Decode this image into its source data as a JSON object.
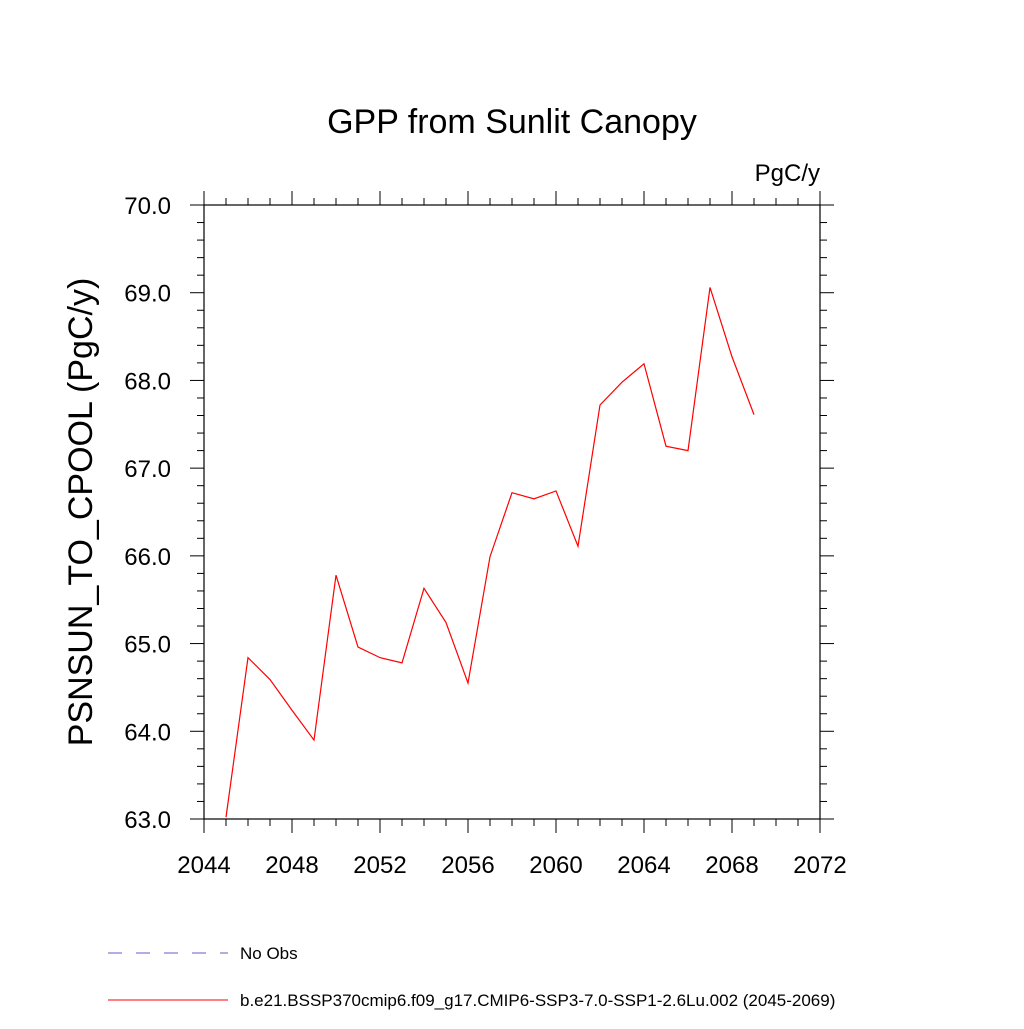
{
  "chart_data": {
    "type": "line",
    "title": "GPP from Sunlit Canopy",
    "units_label": "PgC/y",
    "xlabel": "",
    "ylabel": "PSNSUN_TO_CPOOL  (PgC/y)",
    "xlim": [
      2044,
      2072
    ],
    "ylim": [
      63.0,
      70.0
    ],
    "x_ticks": [
      2044,
      2048,
      2052,
      2056,
      2060,
      2064,
      2068,
      2072
    ],
    "x_tick_labels": [
      "2044",
      "2048",
      "2052",
      "2056",
      "2060",
      "2064",
      "2068",
      "2072"
    ],
    "y_ticks": [
      63.0,
      64.0,
      65.0,
      66.0,
      67.0,
      68.0,
      69.0,
      70.0
    ],
    "y_tick_labels": [
      "63.0",
      "64.0",
      "65.0",
      "66.0",
      "67.0",
      "68.0",
      "69.0",
      "70.0"
    ],
    "x_minor_step": 1,
    "y_minor_step": 0.2,
    "grid": false,
    "legend_position": "bottom",
    "series": [
      {
        "name": "b.e21.BSSP370cmip6.f09_g17.CMIP6-SSP3-7.0-SSP1-2.6Lu.002 (2045-2069)",
        "color": "#ff0000",
        "style": "solid",
        "x": [
          2045,
          2046,
          2047,
          2048,
          2049,
          2050,
          2051,
          2052,
          2053,
          2054,
          2055,
          2056,
          2057,
          2058,
          2059,
          2060,
          2061,
          2062,
          2063,
          2064,
          2065,
          2066,
          2067,
          2068,
          2069
        ],
        "values": [
          63.02,
          64.84,
          64.59,
          64.24,
          63.9,
          65.78,
          64.96,
          64.84,
          64.78,
          65.63,
          65.24,
          64.55,
          65.99,
          66.72,
          66.65,
          66.74,
          66.11,
          67.72,
          67.98,
          68.19,
          67.25,
          67.2,
          69.06,
          68.27,
          67.61
        ]
      }
    ],
    "legend": [
      {
        "label": "No Obs",
        "color": "#6a5acd",
        "style": "dashed"
      },
      {
        "label": "b.e21.BSSP370cmip6.f09_g17.CMIP6-SSP3-7.0-SSP1-2.6Lu.002 (2045-2069)",
        "color": "#ff0000",
        "style": "solid"
      }
    ]
  }
}
